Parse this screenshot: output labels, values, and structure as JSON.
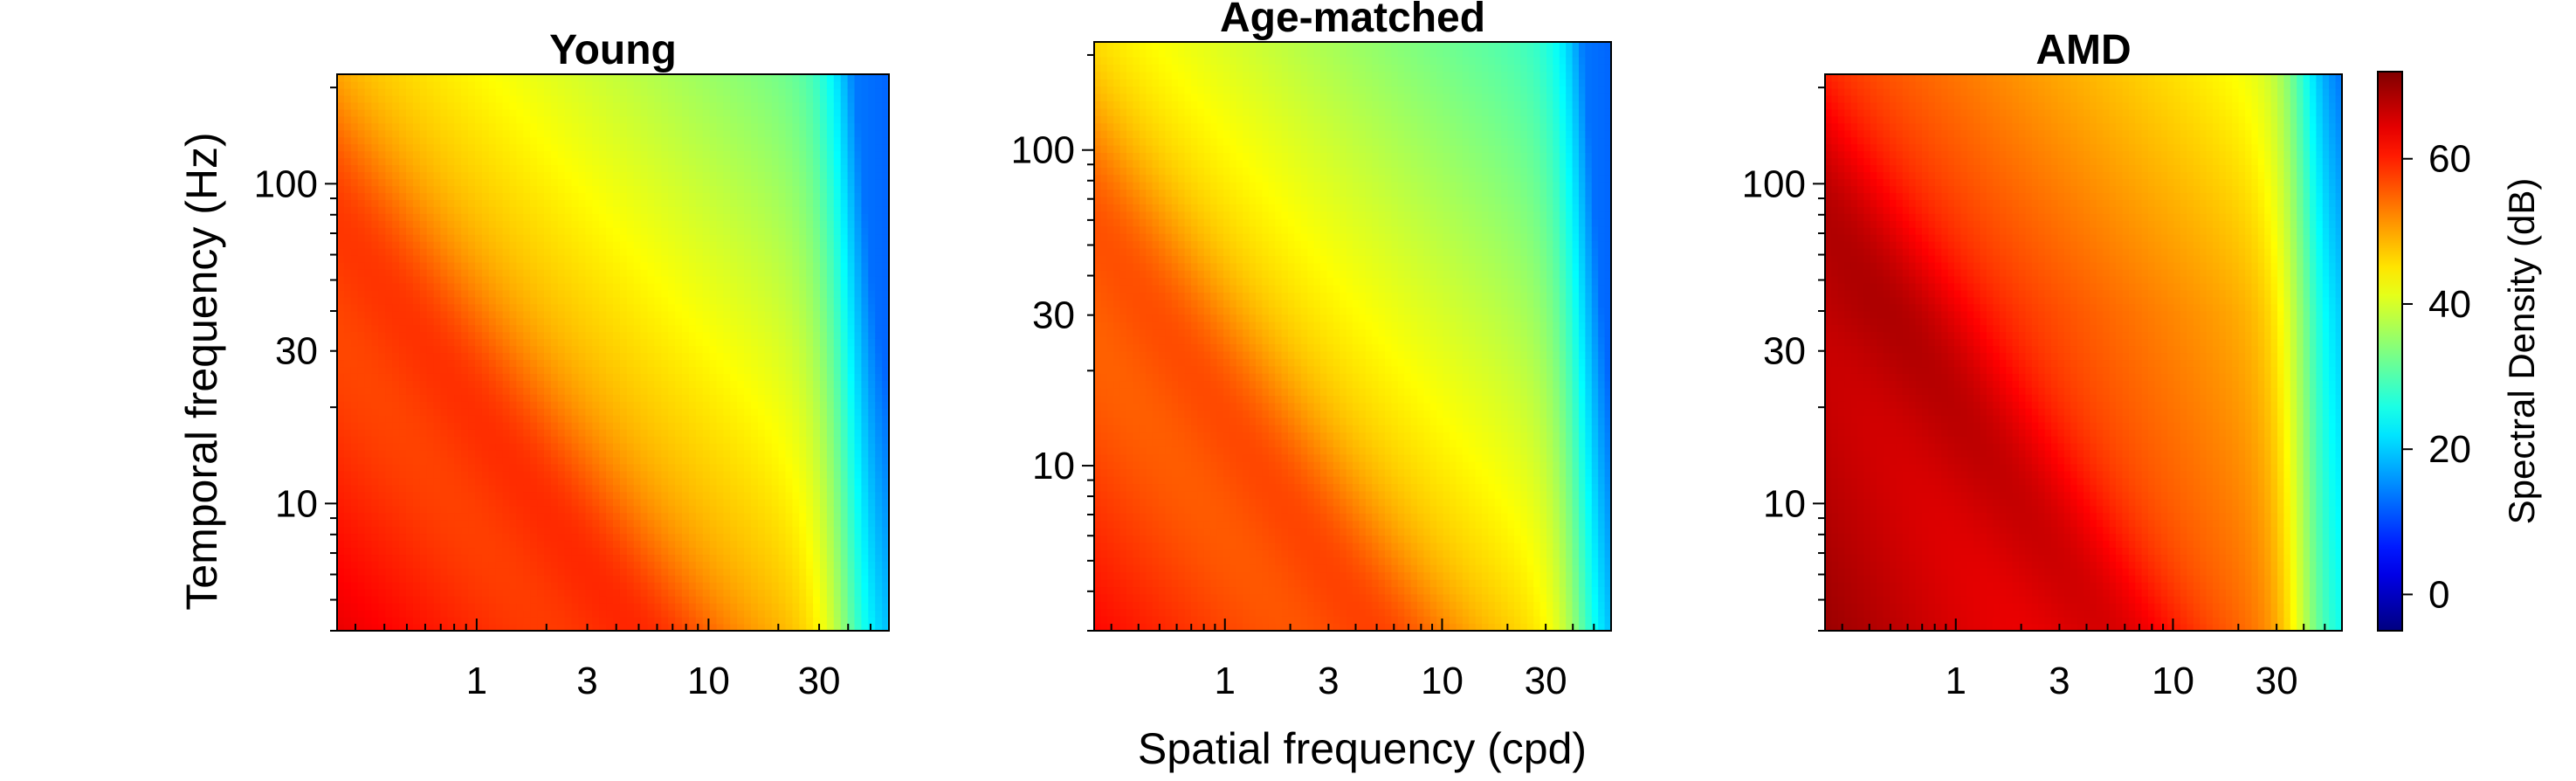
{
  "chart_data": {
    "type": "heatmap",
    "shared": {
      "xlabel": "Spatial frequency (cpd)",
      "ylabel": "Temporal frequency (Hz)",
      "x_scale": "log",
      "y_scale": "log",
      "xlim": [
        0.25,
        60
      ],
      "xticks": [
        1,
        3,
        10,
        30
      ],
      "xtick_labels": [
        "1",
        "3",
        "10",
        "30"
      ],
      "yticks": [
        10,
        30,
        100
      ],
      "ytick_labels": [
        "10",
        "30",
        "100"
      ],
      "colorbar": {
        "label": "Spectral Density (dB)",
        "range": [
          -5,
          72
        ],
        "ticks": [
          0,
          20,
          40,
          60
        ],
        "tick_labels": [
          "0",
          "20",
          "40",
          "60"
        ],
        "colormap": "jet"
      }
    },
    "panels": [
      {
        "title": "Young",
        "ylim": [
          4,
          220
        ],
        "peak_db": 64,
        "ridge_shift": 0,
        "high_sf_falloff_cpd": 40
      },
      {
        "title": "Age-matched",
        "ylim": [
          3,
          220
        ],
        "peak_db": 62,
        "ridge_shift": 0,
        "high_sf_falloff_cpd": 45
      },
      {
        "title": "AMD",
        "ylim": [
          4,
          220
        ],
        "peak_db": 70,
        "ridge_shift": 0.08,
        "high_sf_falloff_cpd": 40
      }
    ]
  }
}
